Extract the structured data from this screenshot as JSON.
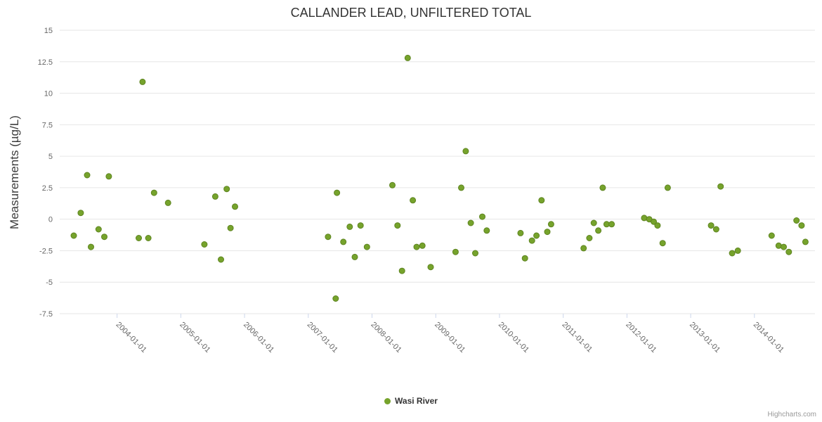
{
  "credits": {
    "text": "Highcharts.com"
  },
  "chart_data": {
    "type": "scatter",
    "title": "CALLANDER LEAD, UNFILTERED TOTAL",
    "xlabel": "",
    "ylabel": "Measurements (µg/L)",
    "ylim": [
      -7.5,
      15
    ],
    "yticks": [
      15,
      12.5,
      10,
      7.5,
      5,
      2.5,
      0,
      -2.5,
      -5,
      -7.5
    ],
    "xlim": [
      2003.1,
      2014.95
    ],
    "xticks": [
      {
        "x": 2004,
        "label": "2004-01-01"
      },
      {
        "x": 2005,
        "label": "2005-01-01"
      },
      {
        "x": 2006,
        "label": "2006-01-01"
      },
      {
        "x": 2007,
        "label": "2007-01-01"
      },
      {
        "x": 2008,
        "label": "2008-01-01"
      },
      {
        "x": 2009,
        "label": "2009-01-01"
      },
      {
        "x": 2010,
        "label": "2010-01-01"
      },
      {
        "x": 2011,
        "label": "2011-01-01"
      },
      {
        "x": 2012,
        "label": "2012-01-01"
      },
      {
        "x": 2013,
        "label": "2013-01-01"
      },
      {
        "x": 2014,
        "label": "2014-01-01"
      }
    ],
    "grid": "horizontal",
    "legend_position": "bottom-center",
    "series": [
      {
        "name": "Wasi River",
        "color": "#76a32c",
        "stroke": "#5e8421",
        "marker": "circle",
        "points": [
          [
            2003.32,
            -1.3
          ],
          [
            2003.43,
            0.5
          ],
          [
            2003.53,
            3.5
          ],
          [
            2003.59,
            -2.2
          ],
          [
            2003.71,
            -0.8
          ],
          [
            2003.8,
            -1.4
          ],
          [
            2003.87,
            3.4
          ],
          [
            2004.34,
            -1.5
          ],
          [
            2004.4,
            10.9
          ],
          [
            2004.49,
            -1.5
          ],
          [
            2004.58,
            2.1
          ],
          [
            2004.8,
            1.3
          ],
          [
            2005.37,
            -2.0
          ],
          [
            2005.54,
            1.8
          ],
          [
            2005.63,
            -3.2
          ],
          [
            2005.72,
            2.4
          ],
          [
            2005.78,
            -0.7
          ],
          [
            2005.85,
            1.0
          ],
          [
            2007.31,
            -1.4
          ],
          [
            2007.43,
            -6.3
          ],
          [
            2007.45,
            2.1
          ],
          [
            2007.55,
            -1.8
          ],
          [
            2007.65,
            -0.6
          ],
          [
            2007.73,
            -3.0
          ],
          [
            2007.82,
            -0.5
          ],
          [
            2007.92,
            -2.2
          ],
          [
            2008.32,
            2.7
          ],
          [
            2008.4,
            -0.5
          ],
          [
            2008.47,
            -4.1
          ],
          [
            2008.56,
            12.8
          ],
          [
            2008.64,
            1.5
          ],
          [
            2008.7,
            -2.2
          ],
          [
            2008.79,
            -2.1
          ],
          [
            2008.92,
            -3.8
          ],
          [
            2009.31,
            -2.6
          ],
          [
            2009.4,
            2.5
          ],
          [
            2009.47,
            5.4
          ],
          [
            2009.55,
            -0.3
          ],
          [
            2009.62,
            -2.7
          ],
          [
            2009.73,
            0.2
          ],
          [
            2009.8,
            -0.9
          ],
          [
            2010.33,
            -1.1
          ],
          [
            2010.4,
            -3.1
          ],
          [
            2010.51,
            -1.7
          ],
          [
            2010.58,
            -1.3
          ],
          [
            2010.66,
            1.5
          ],
          [
            2010.75,
            -1.0
          ],
          [
            2010.81,
            -0.4
          ],
          [
            2011.32,
            -2.3
          ],
          [
            2011.41,
            -1.5
          ],
          [
            2011.48,
            -0.3
          ],
          [
            2011.55,
            -0.9
          ],
          [
            2011.62,
            2.5
          ],
          [
            2011.68,
            -0.4
          ],
          [
            2011.76,
            -0.4
          ],
          [
            2012.27,
            0.1
          ],
          [
            2012.35,
            0.0
          ],
          [
            2012.42,
            -0.2
          ],
          [
            2012.48,
            -0.5
          ],
          [
            2012.56,
            -1.9
          ],
          [
            2012.64,
            2.5
          ],
          [
            2013.32,
            -0.5
          ],
          [
            2013.4,
            -0.8
          ],
          [
            2013.47,
            2.6
          ],
          [
            2013.65,
            -2.7
          ],
          [
            2013.74,
            -2.5
          ],
          [
            2014.27,
            -1.3
          ],
          [
            2014.38,
            -2.1
          ],
          [
            2014.46,
            -2.2
          ],
          [
            2014.54,
            -2.6
          ],
          [
            2014.66,
            -0.1
          ],
          [
            2014.74,
            -0.5
          ],
          [
            2014.8,
            -1.8
          ]
        ]
      }
    ]
  }
}
